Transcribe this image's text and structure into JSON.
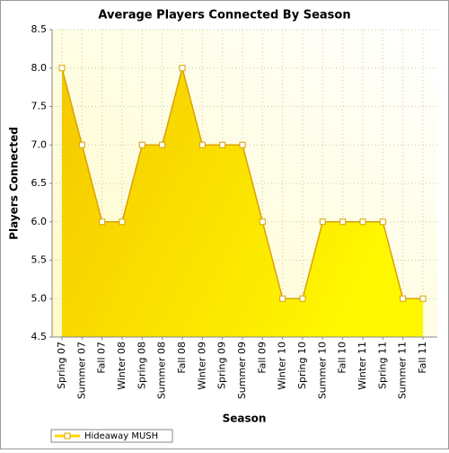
{
  "chart_data": {
    "type": "area",
    "title": "Average Players Connected By Season",
    "x_label": "Season",
    "y_label": "Players Connected",
    "categories": [
      "Spring 07",
      "Summer 07",
      "Fall 07",
      "Winter 08",
      "Spring 08",
      "Summer 08",
      "Fall 08",
      "Winter 09",
      "Spring 09",
      "Summer 09",
      "Fall 09",
      "Winter 10",
      "Spring 10",
      "Summer 10",
      "Fall 10",
      "Winter 11",
      "Spring 11",
      "Summer 11",
      "Fall 11"
    ],
    "series": [
      {
        "name": "Hideaway MUSH",
        "color": "#ffd700",
        "line_color": "#d9a300",
        "values": [
          8,
          7,
          6,
          6,
          7,
          7,
          8,
          7,
          7,
          7,
          6,
          5,
          5,
          6,
          6,
          6,
          6,
          5,
          5
        ]
      }
    ],
    "ylim": [
      4.5,
      8.5
    ],
    "yticks": [
      4.5,
      {
        "value": 5,
        "label": "5.0"
      },
      5.5,
      {
        "value": 6,
        "label": "6.0"
      },
      6.5,
      {
        "value": 7,
        "label": "7.0"
      },
      7.5,
      {
        "value": 8,
        "label": "8.0"
      },
      8.5
    ],
    "grid": true,
    "legend": "bottom-left"
  }
}
